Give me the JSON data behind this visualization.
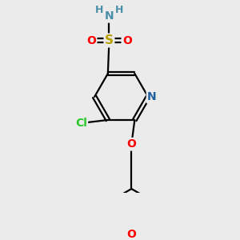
{
  "bg_color": "#ebebeb",
  "bond_color": "#000000",
  "bond_width": 1.6,
  "atom_colors": {
    "N_pyridine": "#2060a0",
    "N_amine": "#4a8fa8",
    "S": "#b8a000",
    "O": "#ff0000",
    "Cl": "#28c828",
    "H": "#4a8fa8"
  },
  "font_size": 10
}
